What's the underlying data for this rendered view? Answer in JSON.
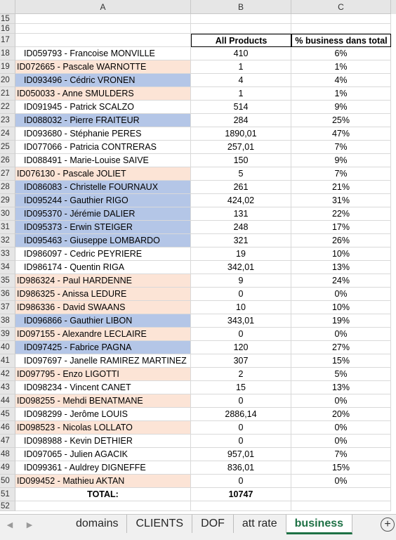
{
  "columns": [
    "A",
    "B",
    "C"
  ],
  "header": {
    "row": "17",
    "col_b": "All Products",
    "col_c": "% business dans total"
  },
  "empty_rows": [
    "15",
    "16"
  ],
  "rows": [
    {
      "n": "18",
      "name": "ID059793 - Francoise MONVILLE",
      "products": "410",
      "pct": "6%",
      "hl": ""
    },
    {
      "n": "19",
      "name": "ID072665 - Pascale WARNOTTE",
      "products": "1",
      "pct": "1%",
      "hl": "peach"
    },
    {
      "n": "20",
      "name": "ID093496 - Cédric VRONEN",
      "products": "4",
      "pct": "4%",
      "hl": "blue"
    },
    {
      "n": "21",
      "name": "ID050033 - Anne SMULDERS",
      "products": "1",
      "pct": "1%",
      "hl": "peach"
    },
    {
      "n": "22",
      "name": "ID091945 - Patrick SCALZO",
      "products": "514",
      "pct": "9%",
      "hl": ""
    },
    {
      "n": "23",
      "name": "ID088032 - Pierre FRAITEUR",
      "products": "284",
      "pct": "25%",
      "hl": "blue"
    },
    {
      "n": "24",
      "name": "ID093680 - Stéphanie PERES",
      "products": "1890,01",
      "pct": "47%",
      "hl": ""
    },
    {
      "n": "25",
      "name": "ID077066 - Patricia CONTRERAS",
      "products": "257,01",
      "pct": "7%",
      "hl": ""
    },
    {
      "n": "26",
      "name": "ID088491 - Marie-Louise SAIVE",
      "products": "150",
      "pct": "9%",
      "hl": ""
    },
    {
      "n": "27",
      "name": "ID076130 - Pascale JOLIET",
      "products": "5",
      "pct": "7%",
      "hl": "peach"
    },
    {
      "n": "28",
      "name": "ID086083 - Christelle FOURNAUX",
      "products": "261",
      "pct": "21%",
      "hl": "blue"
    },
    {
      "n": "29",
      "name": "ID095244 - Gauthier RIGO",
      "products": "424,02",
      "pct": "31%",
      "hl": "blue"
    },
    {
      "n": "30",
      "name": "ID095370 - Jérémie DALIER",
      "products": "131",
      "pct": "22%",
      "hl": "blue"
    },
    {
      "n": "31",
      "name": "ID095373 - Erwin STEIGER",
      "products": "248",
      "pct": "17%",
      "hl": "blue"
    },
    {
      "n": "32",
      "name": "ID095463 - Giuseppe LOMBARDO",
      "products": "321",
      "pct": "26%",
      "hl": "blue"
    },
    {
      "n": "33",
      "name": "ID986097 - Cedric PEYRIERE",
      "products": "19",
      "pct": "10%",
      "hl": ""
    },
    {
      "n": "34",
      "name": "ID986174 - Quentin RIGA",
      "products": "342,01",
      "pct": "13%",
      "hl": ""
    },
    {
      "n": "35",
      "name": "ID986324 - Paul HARDENNE",
      "products": "9",
      "pct": "24%",
      "hl": "peach"
    },
    {
      "n": "36",
      "name": "ID986325 - Anissa LEDURE",
      "products": "0",
      "pct": "0%",
      "hl": "peach"
    },
    {
      "n": "37",
      "name": "ID986336 - David SWAANS",
      "products": "10",
      "pct": "10%",
      "hl": "peach"
    },
    {
      "n": "38",
      "name": "ID096866 - Gauthier LIBON",
      "products": "343,01",
      "pct": "19%",
      "hl": "blue"
    },
    {
      "n": "39",
      "name": "ID097155 - Alexandre LECLAIRE",
      "products": "0",
      "pct": "0%",
      "hl": "peach"
    },
    {
      "n": "40",
      "name": "ID097425 - Fabrice PAGNA",
      "products": "120",
      "pct": "27%",
      "hl": "blue"
    },
    {
      "n": "41",
      "name": "ID097697 - Janelle RAMIREZ MARTINEZ",
      "products": "307",
      "pct": "15%",
      "hl": ""
    },
    {
      "n": "42",
      "name": "ID097795 - Enzo LIGOTTI",
      "products": "2",
      "pct": "5%",
      "hl": "peach"
    },
    {
      "n": "43",
      "name": "ID098234 - Vincent CANET",
      "products": "15",
      "pct": "13%",
      "hl": ""
    },
    {
      "n": "44",
      "name": "ID098255 - Mehdi BENATMANE",
      "products": "0",
      "pct": "0%",
      "hl": "peach"
    },
    {
      "n": "45",
      "name": "ID098299 - Jerôme LOUIS",
      "products": "2886,14",
      "pct": "20%",
      "hl": ""
    },
    {
      "n": "46",
      "name": "ID098523 - Nicolas LOLLATO",
      "products": "0",
      "pct": "0%",
      "hl": "peach"
    },
    {
      "n": "47",
      "name": "ID098988 - Kevin DETHIER",
      "products": "0",
      "pct": "0%",
      "hl": ""
    },
    {
      "n": "48",
      "name": "ID097065 - Julien AGACIK",
      "products": "957,01",
      "pct": "7%",
      "hl": ""
    },
    {
      "n": "49",
      "name": "ID099361 - Auldrey DIGNEFFE",
      "products": "836,01",
      "pct": "15%",
      "hl": ""
    },
    {
      "n": "50",
      "name": "ID099452 - Mathieu AKTAN",
      "products": "0",
      "pct": "0%",
      "hl": "peach"
    }
  ],
  "total": {
    "row": "51",
    "label": "TOTAL:",
    "value": "10747"
  },
  "trailing_rows": [
    "52"
  ],
  "tabs": [
    {
      "label": "domains",
      "active": false
    },
    {
      "label": "CLIENTS",
      "active": false
    },
    {
      "label": "DOF",
      "active": false
    },
    {
      "label": "att rate",
      "active": false
    },
    {
      "label": "business",
      "active": true
    }
  ],
  "icons": {
    "prev": "triangle-left-icon",
    "next": "triangle-right-icon",
    "add": "plus-circle-icon"
  },
  "colors": {
    "peach": "#fce4d6",
    "blue": "#b4c6e7",
    "active_tab": "#1e7145"
  }
}
